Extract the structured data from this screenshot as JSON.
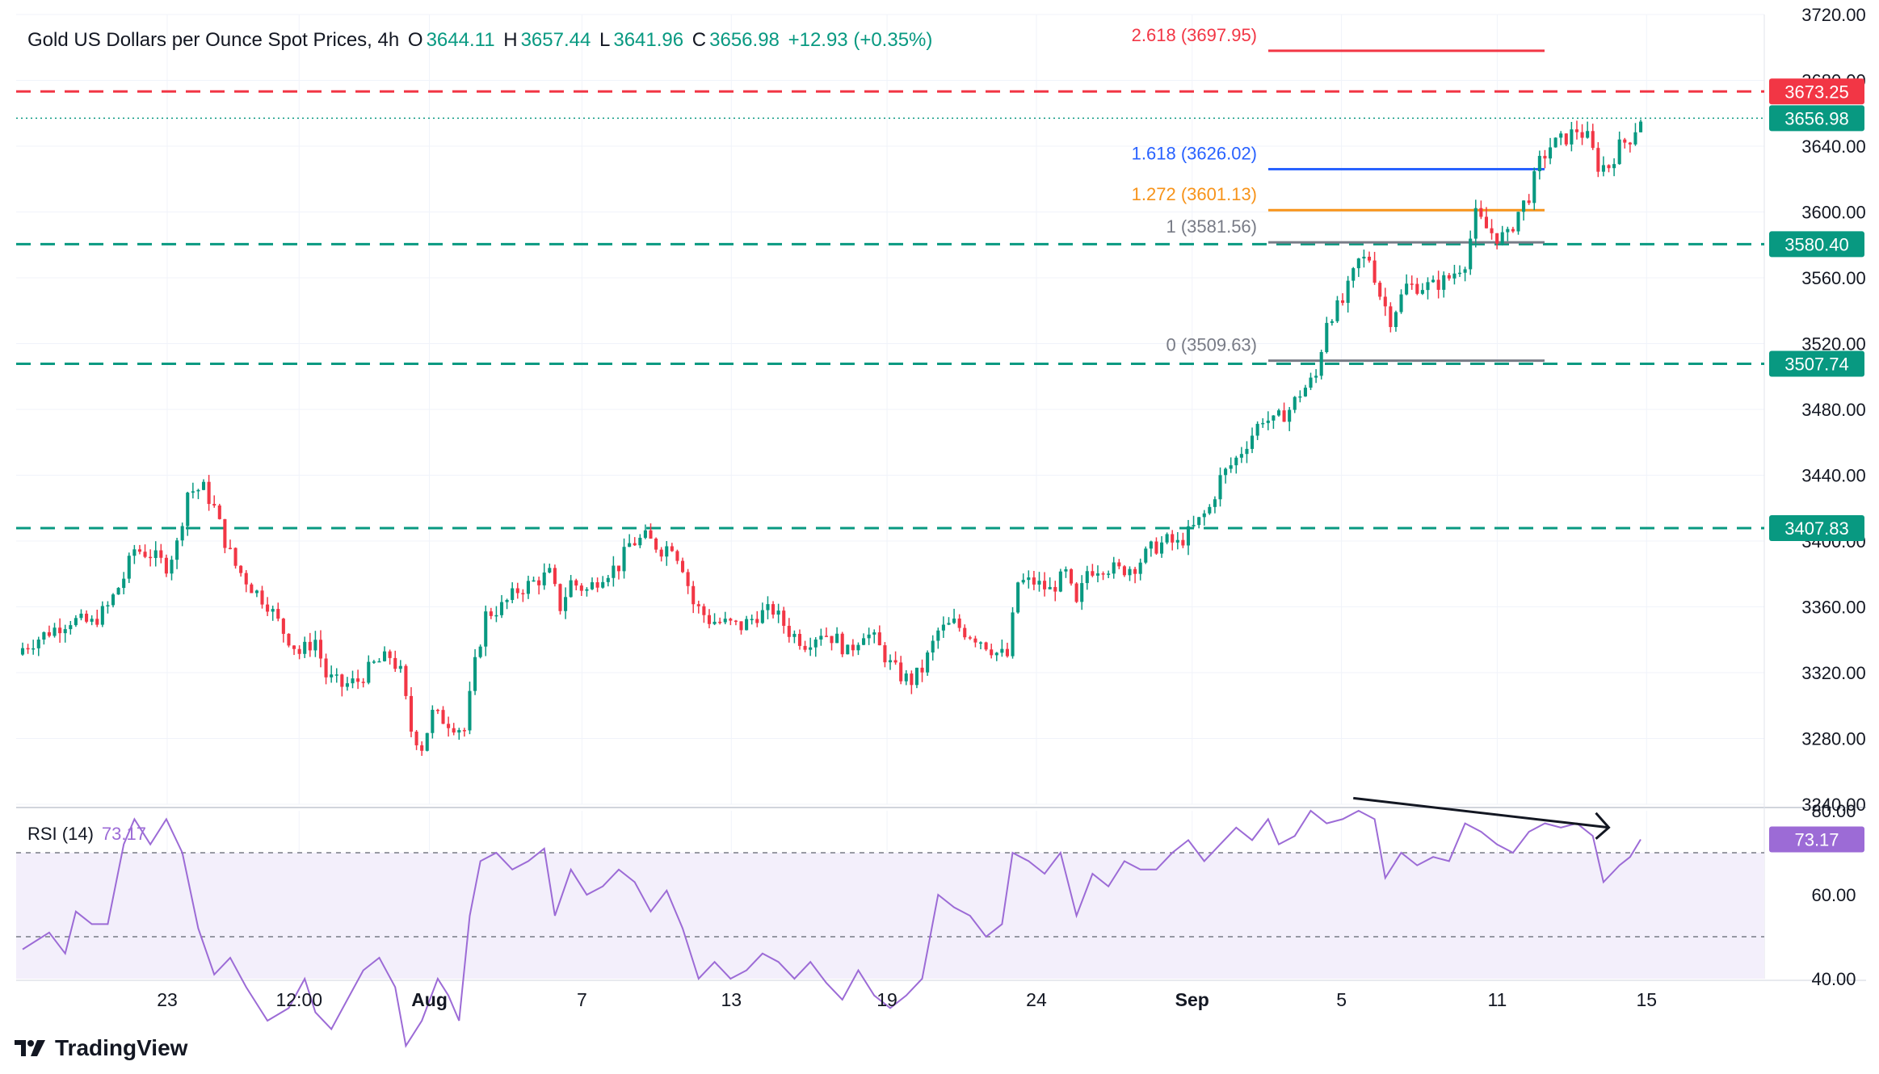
{
  "header": {
    "symbol": "Gold US Dollars per Ounce Spot Prices, 4h",
    "o_label": "O",
    "o_value": "3644.11",
    "h_label": "H",
    "h_value": "3657.44",
    "l_label": "L",
    "l_value": "3641.96",
    "c_label": "C",
    "c_value": "3656.98",
    "change": "+12.93 (+0.35%)"
  },
  "rsi": {
    "label": "RSI (14)",
    "value": "73.17"
  },
  "brand": {
    "name": "TradingView"
  },
  "colors": {
    "up": "#089981",
    "down": "#f23645",
    "fib_2618": "#f23645",
    "fib_1618": "#2962ff",
    "fib_1272": "#f7931a",
    "fib_gray": "#787b86",
    "rsi_line": "#9c6bd6",
    "rsi_band": "#f3effb"
  },
  "chart_data": [
    {
      "type": "candlestick",
      "interval": "4h",
      "ylim": [
        3240,
        3720
      ],
      "y_ticks": [
        "3720.00",
        "3680.00",
        "3640.00",
        "3600.00",
        "3560.00",
        "3520.00",
        "3480.00",
        "3440.00",
        "3400.00",
        "3360.00",
        "3320.00",
        "3280.00",
        "3240.00"
      ],
      "x_ticks": [
        "23",
        "12:00",
        "Aug",
        "7",
        "13",
        "19",
        "24",
        "Sep",
        "5",
        "11",
        "15"
      ],
      "x_ticks_bold": [
        "Aug",
        "Sep"
      ],
      "last_price": "3656.98",
      "horizontal_levels": [
        {
          "value": 3673.25,
          "label": "3673.25",
          "style": "dashed",
          "color": "#f23645"
        },
        {
          "value": 3580.4,
          "label": "3580.40",
          "style": "dashed",
          "color": "#089981"
        },
        {
          "value": 3507.74,
          "label": "3507.74",
          "style": "dashed",
          "color": "#089981"
        },
        {
          "value": 3407.83,
          "label": "3407.83",
          "style": "dashed",
          "color": "#089981"
        }
      ],
      "fib_levels": [
        {
          "ratio": "2.618",
          "value": 3697.95,
          "label": "2.618 (3697.95)",
          "color": "#f23645"
        },
        {
          "ratio": "1.618",
          "value": 3626.02,
          "label": "1.618 (3626.02)",
          "color": "#2962ff"
        },
        {
          "ratio": "1.272",
          "value": 3601.13,
          "label": "1.272 (3601.13)",
          "color": "#f7931a"
        },
        {
          "ratio": "1",
          "value": 3581.56,
          "label": "1 (3581.56)",
          "color": "#787b86"
        },
        {
          "ratio": "0",
          "value": 3509.63,
          "label": "0 (3509.63)",
          "color": "#787b86"
        }
      ],
      "close_path": [
        [
          0,
          3335
        ],
        [
          5,
          3345
        ],
        [
          9,
          3352
        ],
        [
          13,
          3350
        ],
        [
          16,
          3360
        ],
        [
          19,
          3378
        ],
        [
          21,
          3395
        ],
        [
          24,
          3392
        ],
        [
          27,
          3385
        ],
        [
          29,
          3398
        ],
        [
          31,
          3430
        ],
        [
          34,
          3432
        ],
        [
          36,
          3420
        ],
        [
          38,
          3400
        ],
        [
          40,
          3385
        ],
        [
          43,
          3372
        ],
        [
          46,
          3362
        ],
        [
          49,
          3345
        ],
        [
          52,
          3332
        ],
        [
          55,
          3340
        ],
        [
          57,
          3318
        ],
        [
          60,
          3312
        ],
        [
          63,
          3315
        ],
        [
          66,
          3325
        ],
        [
          69,
          3330
        ],
        [
          71,
          3320
        ],
        [
          73,
          3285
        ],
        [
          75,
          3275
        ],
        [
          77,
          3295
        ],
        [
          80,
          3290
        ],
        [
          83,
          3285
        ],
        [
          85,
          3325
        ],
        [
          87,
          3355
        ],
        [
          90,
          3360
        ],
        [
          93,
          3370
        ],
        [
          96,
          3375
        ],
        [
          99,
          3380
        ],
        [
          101,
          3360
        ],
        [
          103,
          3375
        ],
        [
          106,
          3370
        ],
        [
          109,
          3380
        ],
        [
          112,
          3385
        ],
        [
          114,
          3398
        ],
        [
          117,
          3402
        ],
        [
          120,
          3395
        ],
        [
          122,
          3398
        ],
        [
          124,
          3385
        ],
        [
          126,
          3362
        ],
        [
          129,
          3352
        ],
        [
          132,
          3350
        ],
        [
          135,
          3348
        ],
        [
          138,
          3355
        ],
        [
          141,
          3358
        ],
        [
          144,
          3345
        ],
        [
          147,
          3338
        ],
        [
          150,
          3345
        ],
        [
          153,
          3340
        ],
        [
          155,
          3332
        ],
        [
          158,
          3345
        ],
        [
          160,
          3340
        ],
        [
          163,
          3325
        ],
        [
          165,
          3318
        ],
        [
          167,
          3315
        ],
        [
          169,
          3322
        ],
        [
          172,
          3345
        ],
        [
          175,
          3350
        ],
        [
          177,
          3345
        ],
        [
          180,
          3340
        ],
        [
          183,
          3332
        ],
        [
          185,
          3330
        ],
        [
          187,
          3375
        ],
        [
          190,
          3375
        ],
        [
          193,
          3370
        ],
        [
          196,
          3380
        ],
        [
          198,
          3360
        ],
        [
          200,
          3382
        ],
        [
          203,
          3385
        ],
        [
          206,
          3382
        ],
        [
          209,
          3385
        ],
        [
          212,
          3395
        ],
        [
          215,
          3400
        ],
        [
          217,
          3398
        ],
        [
          220,
          3408
        ],
        [
          223,
          3420
        ],
        [
          225,
          3438
        ],
        [
          228,
          3450
        ],
        [
          230,
          3460
        ],
        [
          233,
          3475
        ],
        [
          235,
          3472
        ],
        [
          238,
          3480
        ],
        [
          240,
          3490
        ],
        [
          243,
          3500
        ],
        [
          245,
          3535
        ],
        [
          248,
          3545
        ],
        [
          251,
          3570
        ],
        [
          253,
          3572
        ],
        [
          255,
          3550
        ],
        [
          257,
          3535
        ],
        [
          260,
          3555
        ],
        [
          263,
          3555
        ],
        [
          265,
          3555
        ],
        [
          268,
          3560
        ],
        [
          271,
          3570
        ],
        [
          273,
          3598
        ],
        [
          275,
          3590
        ],
        [
          277,
          3585
        ],
        [
          279,
          3585
        ],
        [
          281,
          3600
        ],
        [
          283,
          3610
        ],
        [
          285,
          3630
        ],
        [
          287,
          3640
        ],
        [
          290,
          3645
        ],
        [
          292,
          3650
        ],
        [
          294,
          3645
        ],
        [
          296,
          3628
        ],
        [
          298,
          3628
        ],
        [
          300,
          3640
        ],
        [
          302,
          3645
        ],
        [
          304,
          3656.98
        ]
      ]
    },
    {
      "type": "line",
      "name": "RSI (14)",
      "ylim": [
        40,
        80
      ],
      "y_ticks": [
        "80.00",
        "60.00",
        "40.00"
      ],
      "bands": [
        70,
        50
      ],
      "last_value": "73.17",
      "values": [
        [
          0,
          47
        ],
        [
          5,
          51
        ],
        [
          8,
          46
        ],
        [
          10,
          56
        ],
        [
          13,
          53
        ],
        [
          16,
          53
        ],
        [
          19,
          72
        ],
        [
          21,
          78
        ],
        [
          24,
          72
        ],
        [
          27,
          78
        ],
        [
          30,
          70
        ],
        [
          33,
          52
        ],
        [
          36,
          41
        ],
        [
          39,
          45
        ],
        [
          42,
          38
        ],
        [
          46,
          30
        ],
        [
          50,
          33
        ],
        [
          53,
          40
        ],
        [
          55,
          32
        ],
        [
          58,
          28
        ],
        [
          61,
          35
        ],
        [
          64,
          42
        ],
        [
          67,
          45
        ],
        [
          70,
          38
        ],
        [
          72,
          24
        ],
        [
          75,
          30
        ],
        [
          78,
          40
        ],
        [
          80,
          36
        ],
        [
          82,
          30
        ],
        [
          84,
          55
        ],
        [
          86,
          68
        ],
        [
          89,
          70
        ],
        [
          92,
          66
        ],
        [
          95,
          68
        ],
        [
          98,
          71
        ],
        [
          100,
          55
        ],
        [
          103,
          66
        ],
        [
          106,
          60
        ],
        [
          109,
          62
        ],
        [
          112,
          66
        ],
        [
          115,
          63
        ],
        [
          118,
          56
        ],
        [
          121,
          61
        ],
        [
          124,
          52
        ],
        [
          127,
          40
        ],
        [
          130,
          44
        ],
        [
          133,
          40
        ],
        [
          136,
          42
        ],
        [
          139,
          46
        ],
        [
          142,
          44
        ],
        [
          145,
          40
        ],
        [
          148,
          44
        ],
        [
          151,
          39
        ],
        [
          154,
          35
        ],
        [
          157,
          42
        ],
        [
          160,
          36
        ],
        [
          163,
          33
        ],
        [
          166,
          36
        ],
        [
          169,
          40
        ],
        [
          172,
          60
        ],
        [
          175,
          57
        ],
        [
          178,
          55
        ],
        [
          181,
          50
        ],
        [
          184,
          53
        ],
        [
          186,
          70
        ],
        [
          189,
          68
        ],
        [
          192,
          65
        ],
        [
          195,
          70
        ],
        [
          198,
          55
        ],
        [
          201,
          65
        ],
        [
          204,
          62
        ],
        [
          207,
          68
        ],
        [
          210,
          66
        ],
        [
          213,
          66
        ],
        [
          216,
          70
        ],
        [
          219,
          73
        ],
        [
          222,
          68
        ],
        [
          225,
          72
        ],
        [
          228,
          76
        ],
        [
          231,
          73
        ],
        [
          234,
          78
        ],
        [
          236,
          72
        ],
        [
          239,
          74
        ],
        [
          242,
          80
        ],
        [
          245,
          77
        ],
        [
          248,
          78
        ],
        [
          251,
          80
        ],
        [
          254,
          78
        ],
        [
          256,
          64
        ],
        [
          259,
          70
        ],
        [
          262,
          67
        ],
        [
          265,
          69
        ],
        [
          268,
          68
        ],
        [
          271,
          77
        ],
        [
          274,
          75
        ],
        [
          277,
          72
        ],
        [
          280,
          70
        ],
        [
          283,
          75
        ],
        [
          286,
          77
        ],
        [
          289,
          76
        ],
        [
          292,
          77
        ],
        [
          295,
          74
        ],
        [
          297,
          63
        ],
        [
          300,
          67
        ],
        [
          302,
          69
        ],
        [
          304,
          73.17
        ]
      ]
    }
  ]
}
